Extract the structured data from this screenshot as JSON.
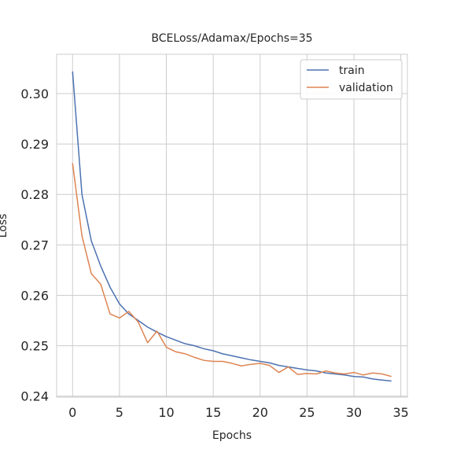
{
  "chart_data": {
    "type": "line",
    "title": "BCELoss/Adamax/Epochs=35",
    "xlabel": "Epochs",
    "ylabel": "Loss",
    "xlim": [
      -1.7,
      35.7
    ],
    "ylim": [
      0.2398,
      0.3078
    ],
    "xticks": [
      0,
      5,
      10,
      15,
      20,
      25,
      30,
      35
    ],
    "yticks": [
      0.24,
      0.25,
      0.26,
      0.27,
      0.28,
      0.29,
      0.3
    ],
    "ytick_labels": [
      "0.24",
      "0.25",
      "0.26",
      "0.27",
      "0.28",
      "0.29",
      "0.30"
    ],
    "grid": true,
    "legend_position": "top-right",
    "x": [
      0,
      1,
      2,
      3,
      4,
      5,
      6,
      7,
      8,
      9,
      10,
      11,
      12,
      13,
      14,
      15,
      16,
      17,
      18,
      19,
      20,
      21,
      22,
      23,
      24,
      25,
      26,
      27,
      28,
      29,
      30,
      31,
      32,
      33,
      34
    ],
    "series": [
      {
        "name": "train",
        "color": "#4c72b0",
        "values": [
          0.3044,
          0.28,
          0.2708,
          0.2658,
          0.2616,
          0.2583,
          0.2563,
          0.255,
          0.2537,
          0.2527,
          0.2518,
          0.2511,
          0.2504,
          0.25,
          0.2494,
          0.249,
          0.2484,
          0.248,
          0.2476,
          0.2472,
          0.2469,
          0.2466,
          0.2461,
          0.2458,
          0.2455,
          0.2452,
          0.245,
          0.2446,
          0.2444,
          0.2442,
          0.2439,
          0.2438,
          0.2434,
          0.2432,
          0.243
        ]
      },
      {
        "name": "validation",
        "color": "#dd8452",
        "values": [
          0.2862,
          0.2718,
          0.2643,
          0.2622,
          0.2563,
          0.2555,
          0.2568,
          0.2547,
          0.2506,
          0.2529,
          0.2497,
          0.2488,
          0.2484,
          0.2477,
          0.2471,
          0.2469,
          0.2469,
          0.2465,
          0.246,
          0.2463,
          0.2465,
          0.2461,
          0.2447,
          0.2458,
          0.2443,
          0.2445,
          0.2444,
          0.245,
          0.2446,
          0.2444,
          0.2447,
          0.2442,
          0.2446,
          0.2444,
          0.2439
        ]
      }
    ]
  }
}
